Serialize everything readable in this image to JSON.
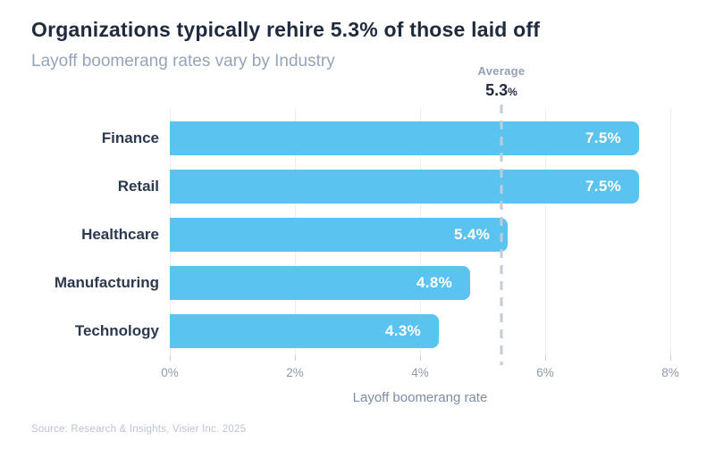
{
  "header": {
    "title": "Organizations typically rehire 5.3% of those laid off",
    "subtitle": "Layoff boomerang rates vary by Industry"
  },
  "annotation": {
    "label": "Average",
    "value": "5.3",
    "unit": "%"
  },
  "chart_data": {
    "type": "bar",
    "orientation": "horizontal",
    "title": "Organizations typically rehire 5.3% of those laid off",
    "subtitle": "Layoff boomerang rates vary by Industry",
    "categories": [
      "Finance",
      "Retail",
      "Healthcare",
      "Manufacturing",
      "Technology"
    ],
    "values": [
      7.5,
      7.5,
      5.4,
      4.8,
      4.3
    ],
    "value_labels": [
      "7.5%",
      "7.5%",
      "5.4%",
      "4.8%",
      "4.3%"
    ],
    "average": 5.3,
    "average_label": "Average",
    "xlabel": "Layoff boomerang rate",
    "ylabel": "",
    "x_ticks": [
      "0%",
      "2%",
      "4%",
      "6%",
      "8%"
    ],
    "x_tick_values": [
      0,
      2,
      4,
      6,
      8
    ],
    "xlim": [
      0,
      8
    ],
    "grid": true,
    "legend": false
  },
  "colors": {
    "bar": "#5ac3f0",
    "title": "#1f2a3c",
    "subtitle": "#97a3b8",
    "category_label": "#2c394e",
    "bar_value_text": "#ffffff",
    "gridline": "#eceef3",
    "tick": "#c9d0da",
    "average_line": "#c2cbd8",
    "axis_text": "#8d99ab",
    "source_text": "#bcc3cf"
  },
  "footer": {
    "source": "Source: Research & Insights, Visier Inc. 2025"
  }
}
